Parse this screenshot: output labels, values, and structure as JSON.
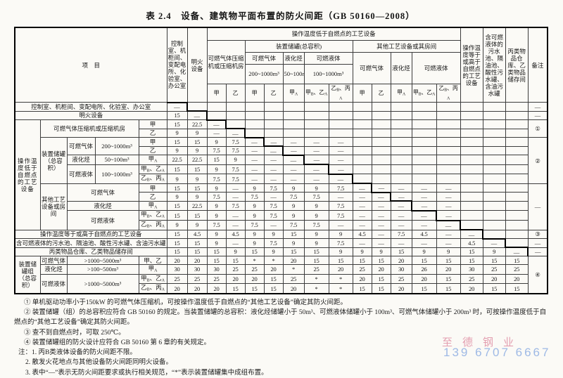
{
  "title": "表 2.4　设备、建筑物平面布置的防火间距（GB 50160—2008）",
  "header": {
    "item": "项　目",
    "colA": "控制室、机柜间、变配电所、化验室、办公室",
    "colB": "明火设备",
    "group_low": "操作温度低于自燃点的工艺设备",
    "compressor": "可燃气体压缩机或压缩机房",
    "unit_tanks": "装置储罐(总容积)",
    "other_equip": "其他工艺设备或其房间",
    "gas": "可燃气体",
    "lpg": "液化烃",
    "liquid": "可燃液体",
    "gas_vol": "200~1000m³",
    "lpg_vol": "50~100m³",
    "liquid_vol": "100~1000m³",
    "colO": "操作温度等于或高于自燃点的工艺设备",
    "colP": "含可燃液体的污水池、隔油池、酸性污水罐、含油污水罐",
    "colQ": "丙类物品仓库、乙类物品储存间",
    "remark": "备注",
    "sub": [
      "甲",
      "乙",
      "甲",
      "乙",
      "甲A",
      "甲B、乙A",
      "乙B、丙A",
      "甲",
      "乙",
      "甲A",
      "甲B、乙A",
      "乙B、丙A"
    ]
  },
  "rows": [
    {
      "labels": [
        {
          "t": "控制室、机柜间、变配电所、化验室、办公室",
          "c": 5
        }
      ],
      "cells": [
        "—",
        "",
        "",
        "",
        "",
        "",
        "",
        "",
        "",
        "",
        "",
        "",
        "",
        "",
        "",
        "",
        ""
      ],
      "remark": "—"
    },
    {
      "labels": [
        {
          "t": "明火设备",
          "c": 5
        }
      ],
      "cells": [
        "15",
        "—",
        "",
        "",
        "",
        "",
        "",
        "",
        "",
        "",
        "",
        "",
        "",
        "",
        "",
        "",
        ""
      ],
      "remark": "—"
    },
    {
      "labels": [
        {
          "t": "操作温度低于自燃点的工艺设备",
          "r": 12,
          "cls": "grp"
        },
        {
          "t": "可燃气体压缩机或压缩机房",
          "c": 3,
          "r": 2
        },
        {
          "t": "甲",
          "s": 1
        }
      ],
      "cells": [
        "15",
        "22.5",
        "—",
        "",
        "",
        "",
        "",
        "",
        "",
        "",
        "",
        "",
        "",
        "",
        "",
        "",
        ""
      ],
      "remark": {
        "t": "①",
        "span": 2
      }
    },
    {
      "labels": [
        {
          "t": "乙",
          "s": 1
        }
      ],
      "cells": [
        "9",
        "9",
        "—",
        "—",
        "",
        "",
        "",
        "",
        "",
        "",
        "",
        "",
        "",
        "",
        "",
        "",
        ""
      ]
    },
    {
      "labels": [
        {
          "t": "装置储罐（总容积）",
          "r": 5
        },
        {
          "t": "可燃气体",
          "r": 2
        },
        {
          "t": "200~1000m³",
          "r": 2
        },
        {
          "t": "甲",
          "s": 1
        }
      ],
      "cells": [
        "15",
        "15",
        "9",
        "7.5",
        "—",
        "—",
        "—",
        "—",
        "—",
        "",
        "",
        "",
        "",
        "",
        "",
        "",
        ""
      ],
      "remark": {
        "t": "②",
        "span": 5
      }
    },
    {
      "labels": [
        {
          "t": "乙",
          "s": 1
        }
      ],
      "cells": [
        "9",
        "9",
        "7.5",
        "7.5",
        "—",
        "—",
        "—",
        "—",
        "—",
        "",
        "",
        "",
        "",
        "",
        "",
        "",
        ""
      ]
    },
    {
      "labels": [
        {
          "t": "液化烃"
        },
        {
          "t": "50~100m³"
        },
        {
          "t": "甲A",
          "s": 1
        }
      ],
      "cells": [
        "22.5",
        "22.5",
        "15",
        "9",
        "—",
        "—",
        "—",
        "—",
        "—",
        "",
        "",
        "",
        "",
        "",
        "",
        "",
        ""
      ]
    },
    {
      "labels": [
        {
          "t": "可燃液体",
          "r": 2
        },
        {
          "t": "100~1000m³",
          "r": 2
        },
        {
          "t": "甲B、乙A",
          "s": 1
        }
      ],
      "cells": [
        "15",
        "15",
        "9",
        "7.5",
        "—",
        "—",
        "—",
        "—",
        "—",
        "",
        "",
        "",
        "",
        "",
        "",
        "",
        ""
      ]
    },
    {
      "labels": [
        {
          "t": "乙B、丙A",
          "s": 1
        }
      ],
      "cells": [
        "9",
        "9",
        "7.5",
        "7.5",
        "—",
        "—",
        "—",
        "—",
        "—",
        "",
        "",
        "",
        "",
        "",
        "",
        "",
        ""
      ]
    },
    {
      "labels": [
        {
          "t": "其他工艺设备或房间",
          "r": 5
        },
        {
          "t": "可燃气体",
          "c": 2,
          "r": 2
        },
        {
          "t": "甲",
          "s": 1
        }
      ],
      "cells": [
        "15",
        "15",
        "9",
        "—",
        "9",
        "7.5",
        "9",
        "9",
        "7.5",
        "—",
        "—",
        "—",
        "—",
        "—",
        "",
        "",
        ""
      ],
      "remark": {
        "t": "—",
        "span": 5
      }
    },
    {
      "labels": [
        {
          "t": "乙",
          "s": 1
        }
      ],
      "cells": [
        "9",
        "9",
        "7.5",
        "—",
        "7.5",
        "—",
        "7.5",
        "7.5",
        "—",
        "—",
        "—",
        "—",
        "—",
        "—",
        "",
        "",
        ""
      ]
    },
    {
      "labels": [
        {
          "t": "液化烃",
          "c": 2
        },
        {
          "t": "甲A",
          "s": 1
        }
      ],
      "cells": [
        "15",
        "22.5",
        "9",
        "7.5",
        "9",
        "7.5",
        "9",
        "9",
        "7.5",
        "—",
        "—",
        "—",
        "—",
        "—",
        "",
        "",
        ""
      ]
    },
    {
      "labels": [
        {
          "t": "可燃液体",
          "c": 2,
          "r": 2
        },
        {
          "t": "甲B、乙A",
          "s": 1
        }
      ],
      "cells": [
        "15",
        "15",
        "9",
        "—",
        "9",
        "7.5",
        "9",
        "9",
        "7.5",
        "—",
        "—",
        "—",
        "—",
        "—",
        "",
        "",
        ""
      ]
    },
    {
      "labels": [
        {
          "t": "乙B、丙A",
          "s": 1
        }
      ],
      "cells": [
        "9",
        "9",
        "7.5",
        "—",
        "7.5",
        "—",
        "7.5",
        "7.5",
        "—",
        "—",
        "—",
        "—",
        "—",
        "—",
        "",
        "",
        ""
      ]
    },
    {
      "labels": [
        {
          "t": "操作温度等于或高于自燃点的工艺设备",
          "c": 5
        }
      ],
      "sep": 1,
      "cells": [
        "15",
        "4.5",
        "9",
        "4.5",
        "9",
        "9",
        "15",
        "9",
        "9",
        "4.5",
        "—",
        "7.5",
        "4.5",
        "—",
        "—",
        "",
        ""
      ],
      "remark": "③"
    },
    {
      "labels": [
        {
          "t": "含可燃液体的污水池、隔油池、酸性污水罐、含油污水罐",
          "c": 5
        }
      ],
      "cells": [
        "15",
        "15",
        "9",
        "—",
        "9",
        "7.5",
        "9",
        "9",
        "7.5",
        "—",
        "—",
        "—",
        "—",
        "—",
        "4.5",
        "—",
        ""
      ],
      "remark": "—"
    },
    {
      "labels": [
        {
          "t": "丙类物品仓库、乙类物品储存间",
          "c": 5
        }
      ],
      "cells": [
        "15",
        "15",
        "15",
        "9",
        "15",
        "9",
        "15",
        "15",
        "9",
        "9",
        "9",
        "15",
        "9",
        "9",
        "15",
        "9",
        "—"
      ],
      "remark": "—"
    },
    {
      "labels": [
        {
          "t": "装置储罐组（总容积）",
          "r": 4
        },
        {
          "t": "可燃气体"
        },
        {
          "t": ">1000~5000m³",
          "c": 2
        },
        {
          "t": "甲、乙",
          "s": 1
        }
      ],
      "sep": 1,
      "cells": [
        "20",
        "20",
        "15",
        "15",
        "*",
        "*",
        "20",
        "15",
        "15",
        "15",
        "15",
        "20",
        "15",
        "15",
        "15",
        "15",
        "15"
      ],
      "remark": {
        "t": "④",
        "span": 4
      }
    },
    {
      "labels": [
        {
          "t": "液化烃"
        },
        {
          "t": ">100~500m³",
          "c": 2
        },
        {
          "t": "甲A",
          "s": 1
        }
      ],
      "cells": [
        "30",
        "30",
        "30",
        "25",
        "25",
        "20",
        "*",
        "25",
        "20",
        "25",
        "20",
        "30",
        "26",
        "20",
        "30",
        "25",
        "25"
      ]
    },
    {
      "labels": [
        {
          "t": "可燃液体",
          "r": 2
        },
        {
          "t": ">1000~5000m³",
          "c": 2,
          "r": 2
        },
        {
          "t": "甲B、乙A",
          "s": 1
        }
      ],
      "cells": [
        "25",
        "25",
        "25",
        "20",
        "20",
        "15",
        "25",
        "*",
        "*",
        "20",
        "15",
        "25",
        "20",
        "15",
        "25",
        "20",
        "20"
      ]
    },
    {
      "labels": [
        {
          "t": "乙B、丙A",
          "s": 1
        }
      ],
      "cells": [
        "20",
        "20",
        "20",
        "15",
        "15",
        "15",
        "20",
        "*",
        "*",
        "15",
        "15",
        "20",
        "15",
        "15",
        "20",
        "15",
        "15"
      ]
    }
  ],
  "notes": [
    "① 单机驱动功率小于150kW 的可燃气体压缩机，可按操作温度低于自燃点的“其他工艺设备”确定其防火间距。",
    "② 装置储罐（组）的总容积应符合 GB 50160 的规定。当装置储罐的总容积：液化烃储罐小于 50m³、可燃液体储罐小于 100m³、可燃气体储罐小于 200m³ 时，可按操作温度低于自燃点的“其他工艺设备”确定其防火间距。",
    "③ 查不到自燃点时，可取 250℃。",
    "④ 装置储罐组的防火设计应符合 GB 50160 第 6 章的有关规定。",
    "注：1. 丙B类液体设备的防火间距不限。",
    "2. 散发火花地点与其他设备防火间距同明火设备。",
    "3. 表中“—”表示无防火间距要求或执行相关规范，“*”表示装置储罐集中成组布置。"
  ],
  "watermark": {
    "company": "至德钢业",
    "phone": "139 6707 6667"
  }
}
